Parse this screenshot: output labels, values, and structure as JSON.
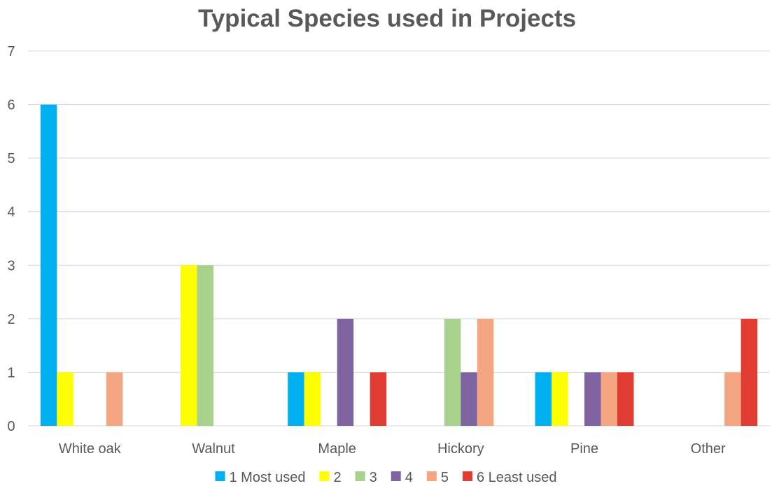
{
  "chart_data": {
    "type": "bar",
    "title": "Typical Species used in Projects",
    "xlabel": "",
    "ylabel": "",
    "ylim": [
      0,
      7
    ],
    "yticks": [
      0,
      1,
      2,
      3,
      4,
      5,
      6,
      7
    ],
    "grid": true,
    "legend_position": "bottom",
    "categories": [
      "White oak",
      "Walnut",
      "Maple",
      "Hickory",
      "Pine",
      "Other"
    ],
    "series": [
      {
        "name": "1 Most used",
        "color": "#00b0f0",
        "values": [
          6,
          0,
          1,
          0,
          1,
          0
        ]
      },
      {
        "name": "2",
        "color": "#ffff00",
        "values": [
          1,
          3,
          1,
          0,
          1,
          0
        ]
      },
      {
        "name": "3",
        "color": "#a9d18e",
        "values": [
          0,
          3,
          0,
          2,
          0,
          0
        ]
      },
      {
        "name": "4",
        "color": "#8064a2",
        "values": [
          0,
          0,
          2,
          1,
          1,
          0
        ]
      },
      {
        "name": "5",
        "color": "#f4a582",
        "values": [
          1,
          0,
          0,
          2,
          1,
          1
        ]
      },
      {
        "name": "6 Least used",
        "color": "#e03c31",
        "values": [
          0,
          0,
          1,
          0,
          1,
          2
        ]
      }
    ]
  }
}
